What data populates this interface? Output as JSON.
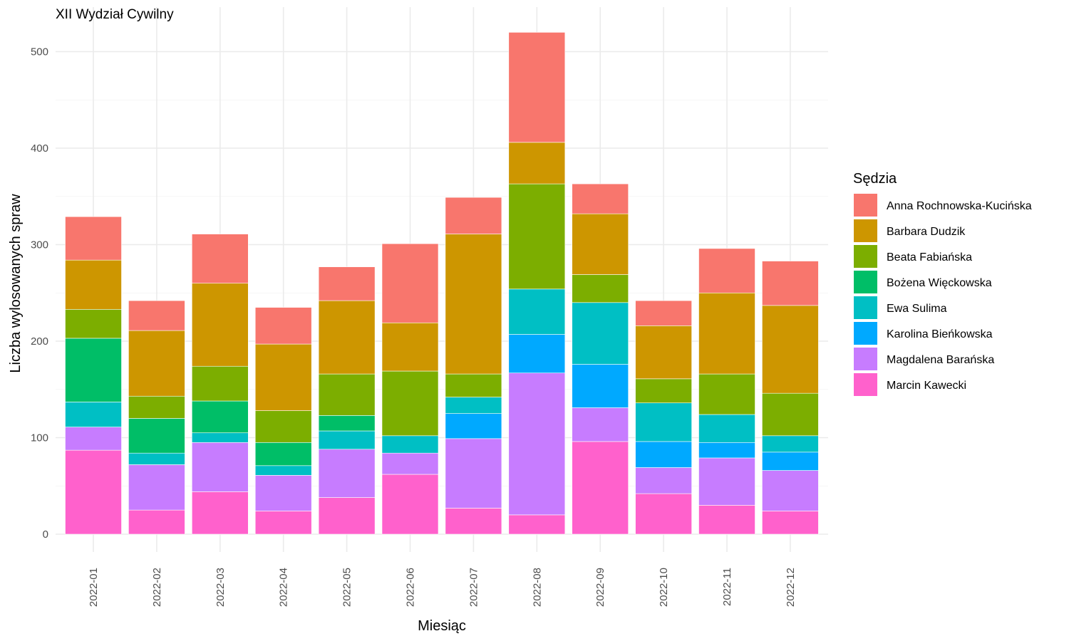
{
  "chart_data": {
    "type": "bar",
    "stacked": true,
    "title": "XII Wydział Cywilny",
    "xlabel": "Miesiąc",
    "ylabel": "Liczba wylosowanych spraw",
    "ylim": [
      0,
      535
    ],
    "yticks": [
      0,
      100,
      200,
      300,
      400,
      500
    ],
    "grid": true,
    "legend": {
      "title": "Sędzia",
      "position": "right"
    },
    "categories": [
      "2022-01",
      "2022-02",
      "2022-03",
      "2022-04",
      "2022-05",
      "2022-06",
      "2022-07",
      "2022-08",
      "2022-09",
      "2022-10",
      "2022-11",
      "2022-12"
    ],
    "series": [
      {
        "name": "Anna Rochnowska-Kucińska",
        "color": "#F8766D",
        "values": [
          45,
          31,
          51,
          38,
          35,
          82,
          38,
          114,
          31,
          26,
          46,
          46
        ]
      },
      {
        "name": "Barbara Dudzik",
        "color": "#CD9600",
        "values": [
          51,
          68,
          86,
          69,
          76,
          50,
          145,
          43,
          63,
          55,
          84,
          91
        ]
      },
      {
        "name": "Beata Fabiańska",
        "color": "#7CAE00",
        "values": [
          30,
          23,
          36,
          33,
          43,
          67,
          24,
          109,
          29,
          25,
          42,
          44
        ]
      },
      {
        "name": "Bożena Więckowska",
        "color": "#00BE67",
        "values": [
          66,
          36,
          33,
          24,
          16,
          0,
          0,
          0,
          0,
          0,
          0,
          0
        ]
      },
      {
        "name": "Ewa Sulima",
        "color": "#00BFC4",
        "values": [
          26,
          12,
          10,
          10,
          19,
          18,
          17,
          47,
          64,
          40,
          29,
          17
        ]
      },
      {
        "name": "Karolina Bieńkowska",
        "color": "#00A9FF",
        "values": [
          0,
          0,
          0,
          0,
          0,
          0,
          26,
          40,
          45,
          27,
          16,
          19
        ]
      },
      {
        "name": "Magdalena Barańska",
        "color": "#C77CFF",
        "values": [
          24,
          47,
          51,
          37,
          50,
          22,
          72,
          147,
          35,
          27,
          49,
          42
        ]
      },
      {
        "name": "Marcin Kawecki",
        "color": "#FF61CC",
        "values": [
          87,
          25,
          44,
          24,
          38,
          62,
          27,
          20,
          96,
          42,
          30,
          24
        ]
      }
    ]
  }
}
